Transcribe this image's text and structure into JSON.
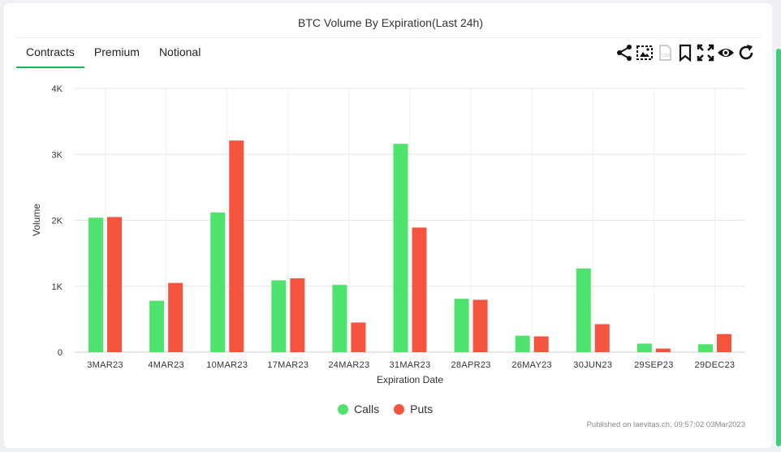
{
  "title": "BTC Volume By Expiration(Last 24h)",
  "tabs": [
    {
      "label": "Contracts",
      "active": true
    },
    {
      "label": "Premium",
      "active": false
    },
    {
      "label": "Notional",
      "active": false
    }
  ],
  "toolbar": [
    "share-icon",
    "image-download-icon",
    "csv-download-icon",
    "bookmark-icon",
    "fullscreen-icon",
    "eye-icon",
    "refresh-icon"
  ],
  "published": "Published on laevitas.ch, 09:57:02 03Mar2023",
  "colors": {
    "calls": "#4ee36c",
    "puts": "#f5553e"
  },
  "chart_data": {
    "type": "bar",
    "title": "BTC Volume By Expiration(Last 24h)",
    "xlabel": "Expiration Date",
    "ylabel": "Volume",
    "ylim": [
      0,
      4000
    ],
    "yticks": [
      0,
      1000,
      2000,
      3000,
      4000
    ],
    "ytick_labels": [
      "0",
      "1K",
      "2K",
      "3K",
      "4K"
    ],
    "grid": true,
    "legend_position": "bottom-center",
    "categories": [
      "3MAR23",
      "4MAR23",
      "10MAR23",
      "17MAR23",
      "24MAR23",
      "31MAR23",
      "28APR23",
      "26MAY23",
      "30JUN23",
      "29SEP23",
      "29DEC23"
    ],
    "series": [
      {
        "name": "Calls",
        "values": [
          2040,
          780,
          2120,
          1090,
          1020,
          3160,
          810,
          250,
          1270,
          130,
          120
        ]
      },
      {
        "name": "Puts",
        "values": [
          2050,
          1050,
          3210,
          1120,
          450,
          1890,
          795,
          240,
          425,
          55,
          275
        ]
      }
    ]
  }
}
